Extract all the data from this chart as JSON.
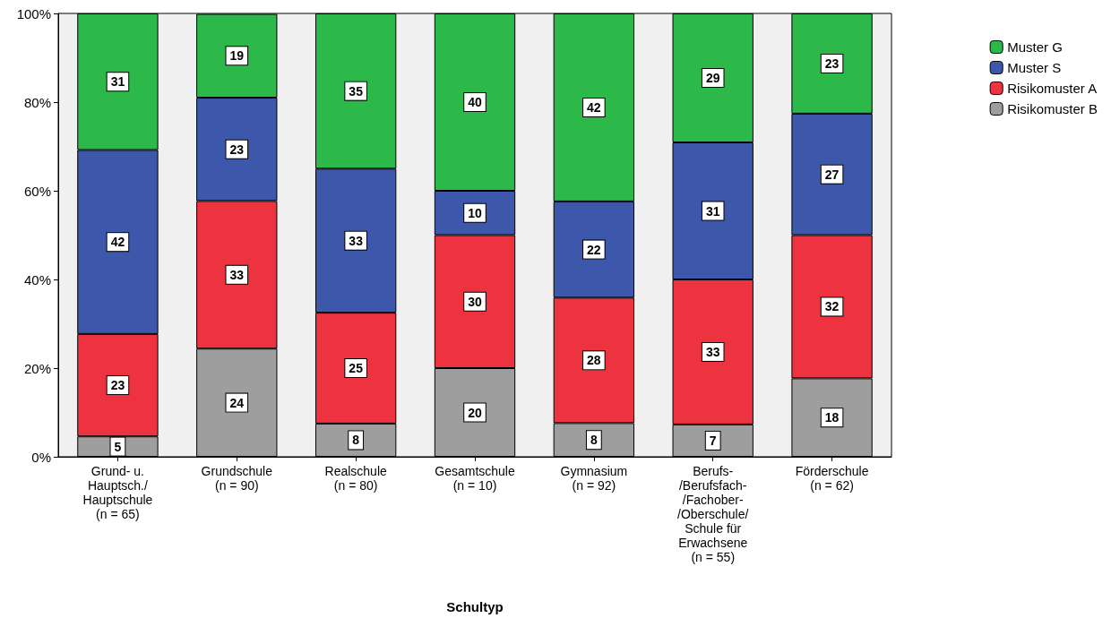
{
  "chart_data": {
    "type": "bar",
    "xlabel": "Schultyp",
    "stacked": true,
    "data_labels": false,
    "legend": "top right",
    "grid": false,
    "categories": [
      "Grund- u.\nHauptsch./\nHauptschule\n(n = 65)",
      "Grundschule\n(n = 90)",
      "Realschule\n(n = 80)",
      "Gesamtschule\n(n = 10)",
      "Gymnasium\n(n = 92)",
      "Berufs-\n/Berufsfach-\n/Fachober-\n/Oberschule/\nSchule für\nErwachsene\n(n = 55)",
      "Förderschule\n(n = 62)"
    ],
    "ylim": [
      0,
      100
    ],
    "yticks": [
      {
        "value": 0,
        "label": "0%"
      },
      {
        "value": 20,
        "label": "20%"
      },
      {
        "value": 40,
        "label": "40%"
      },
      {
        "value": 60,
        "label": "60%"
      },
      {
        "value": 80,
        "label": "80%"
      },
      {
        "value": 100,
        "label": "100%"
      }
    ],
    "series": [
      {
        "name": "Risikomuster B",
        "color": "#9e9e9e",
        "values": [
          4.6,
          24.4,
          7.5,
          20,
          7.6,
          7.3,
          17.7
        ],
        "value_labels": [
          "5",
          "24",
          "8",
          "20",
          "8",
          "7",
          "18"
        ]
      },
      {
        "name": "Risikomuster A",
        "color": "#ee3340",
        "values": [
          23.1,
          33.3,
          25,
          30,
          28.3,
          32.7,
          32.3
        ],
        "value_labels": [
          "23",
          "33",
          "25",
          "30",
          "28",
          "33",
          "32"
        ]
      },
      {
        "name": "Muster S",
        "color": "#3d57ab",
        "values": [
          41.5,
          23.3,
          32.5,
          10,
          21.7,
          30.9,
          27.4
        ],
        "value_labels": [
          "42",
          "23",
          "33",
          "10",
          "22",
          "31",
          "27"
        ]
      },
      {
        "name": "Muster G",
        "color": "#2db84a",
        "values": [
          30.8,
          18.9,
          35,
          40,
          42.4,
          29.1,
          22.6
        ],
        "value_labels": [
          "31",
          "19",
          "35",
          "40",
          "42",
          "29",
          "23"
        ]
      }
    ]
  }
}
